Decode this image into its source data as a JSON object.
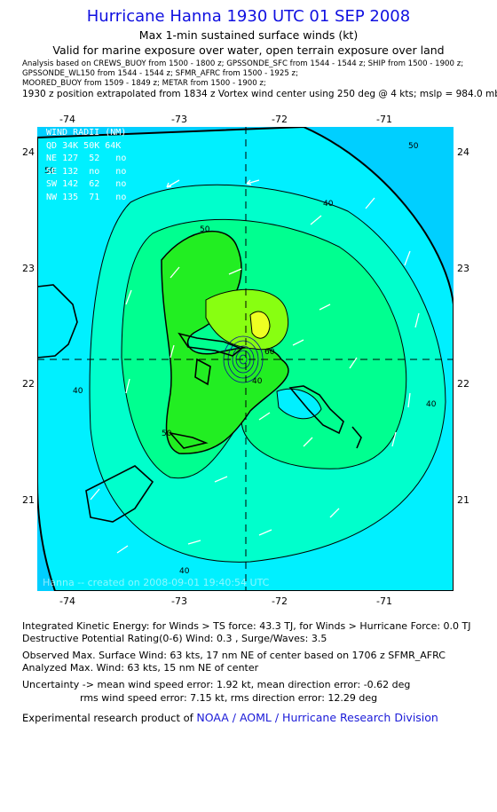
{
  "header": {
    "title": "Hurricane Hanna 1930 UTC 01 SEP 2008",
    "subtitle1": "Max 1-min sustained surface winds (kt)",
    "subtitle2": "Valid for marine exposure over water, open terrain exposure over land",
    "analysis_line1": "Analysis based on  CREWS_BUOY from 1500 - 1800 z;  GPSSONDE_SFC from 1544 - 1544 z;  SHIP from 1500 - 1900 z;",
    "analysis_line2": "GPSSONDE_WL150 from 1544 - 1544 z;  SFMR_AFRC from 1500 - 1925 z;",
    "analysis_line3": "MOORED_BUOY from 1509 - 1849 z;  METAR from 1500 - 1900 z;",
    "extrapolation": "1930 z position extrapolated from 1834 z Vortex wind center using 250 deg @ 4 kts; mslp = 984.0 mb"
  },
  "map": {
    "lon_ticks": [
      "-74",
      "-73",
      "-72",
      "-71"
    ],
    "lat_ticks": [
      "24",
      "23",
      "22",
      "21"
    ],
    "contour_labels": [
      "50",
      "40",
      "50",
      "60",
      "40",
      "50",
      "40",
      "40",
      "40",
      "50"
    ],
    "wind_radii": {
      "title": "WIND RADII (NM)",
      "header": [
        "QD",
        "34K",
        "50K",
        "64K"
      ],
      "rows": [
        [
          "NE",
          "127",
          "52",
          "no"
        ],
        [
          "SE",
          "132",
          "no",
          "no"
        ],
        [
          "SW",
          "142",
          "62",
          "no"
        ],
        [
          "NW",
          "135",
          "71",
          "no"
        ]
      ]
    },
    "stamp": "Hanna -- created on 2008-09-01 19:40:54 UTC",
    "colors": {
      "cyan": "#00f0ff",
      "aqua": "#00ffcc",
      "teal": "#00ff90",
      "green": "#22ee22",
      "lime": "#88ff11",
      "yellow": "#eeff22",
      "deep": "#00cfff"
    }
  },
  "stats": {
    "ike": "Integrated Kinetic Energy:  for Winds > TS force: 43.3 TJ,  for Winds > Hurricane Force: 0.0 TJ",
    "dpr": "Destructive Potential Rating(0-6)   Wind: 0.3 , Surge/Waves: 3.5",
    "obs_max": "Observed Max. Surface Wind: 63 kts, 17 nm NE of center based on 1706 z SFMR_AFRC",
    "ana_max": "Analyzed Max. Wind: 63 kts, 15 nm NE of center",
    "unc1": "Uncertainty -> mean wind speed error: 1.92 kt,   mean direction error:  -0.62 deg",
    "unc2": "rms wind speed error: 7.15 kt,   rms direction error: 12.29 deg"
  },
  "credit": {
    "prefix": "Experimental research product of ",
    "org": "NOAA / AOML / Hurricane Research Division"
  }
}
